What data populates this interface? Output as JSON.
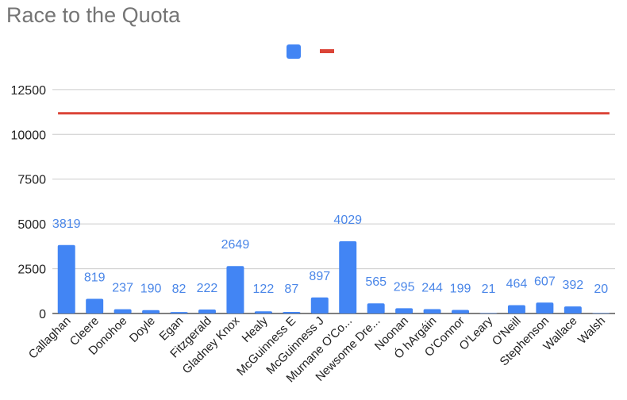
{
  "title": "Race to the Quota",
  "chart_data": {
    "type": "bar",
    "title": "Race to the Quota",
    "categories": [
      "Callaghan",
      "Cleere",
      "Donohoe",
      "Doyle",
      "Egan",
      "Fitzgerald",
      "Gladney Knox",
      "Healy",
      "McGuinness E",
      "McGuinness J",
      "Murnane O'Co...",
      "Newsome Dre...",
      "Noonan",
      "Ó hArgáin",
      "O'Connor",
      "O'Leary",
      "O'Neill",
      "Stephenson",
      "Wallace",
      "Walsh"
    ],
    "series": [
      {
        "type": "bar",
        "color": "#4285f4",
        "values": [
          3819,
          819,
          237,
          190,
          82,
          222,
          2649,
          122,
          87,
          897,
          4029,
          565,
          295,
          244,
          199,
          21,
          464,
          607,
          392,
          20
        ],
        "data_labels": [
          "3819",
          "819",
          "237",
          "190",
          "82",
          "222",
          "2649",
          "122",
          "87",
          "897",
          "4029",
          "565",
          "295",
          "244",
          "199",
          "21",
          "464",
          "607",
          "392",
          "20"
        ]
      },
      {
        "type": "line",
        "color": "#db4437",
        "values": [
          11177,
          11177,
          11177,
          11177,
          11177,
          11177,
          11177,
          11177,
          11177,
          11177,
          11177,
          11177,
          11177,
          11177,
          11177,
          11177,
          11177,
          11177,
          11177,
          11177
        ]
      }
    ],
    "y_ticks": [
      "0",
      "2500",
      "5000",
      "7500",
      "10000",
      "12500"
    ],
    "y_tick_values": [
      0,
      2500,
      5000,
      7500,
      10000,
      12500
    ],
    "ylim": [
      0,
      13600
    ],
    "grid": true,
    "legend_position": "top-center",
    "xlabel": "",
    "ylabel": ""
  }
}
